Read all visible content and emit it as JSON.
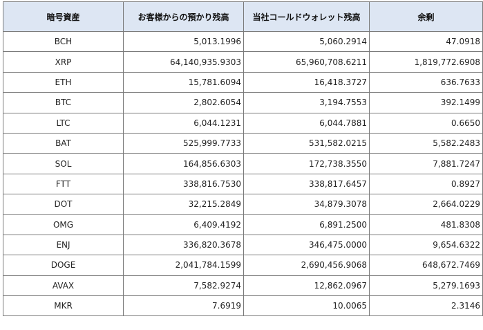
{
  "table": {
    "headers": [
      "暗号資産",
      "お客様からの預かり残高",
      "当社コールドウォレット残高",
      "余剰"
    ],
    "rows": [
      {
        "asset": "BCH",
        "deposit": "5,013.1996",
        "cold": "5,060.2914",
        "surplus": "47.0918"
      },
      {
        "asset": "XRP",
        "deposit": "64,140,935.9303",
        "cold": "65,960,708.6211",
        "surplus": "1,819,772.6908"
      },
      {
        "asset": "ETH",
        "deposit": "15,781.6094",
        "cold": "16,418.3727",
        "surplus": "636.7633"
      },
      {
        "asset": "BTC",
        "deposit": "2,802.6054",
        "cold": "3,194.7553",
        "surplus": "392.1499"
      },
      {
        "asset": "LTC",
        "deposit": "6,044.1231",
        "cold": "6,044.7881",
        "surplus": "0.6650"
      },
      {
        "asset": "BAT",
        "deposit": "525,999.7733",
        "cold": "531,582.0215",
        "surplus": "5,582.2483"
      },
      {
        "asset": "SOL",
        "deposit": "164,856.6303",
        "cold": "172,738.3550",
        "surplus": "7,881.7247"
      },
      {
        "asset": "FTT",
        "deposit": "338,816.7530",
        "cold": "338,817.6457",
        "surplus": "0.8927"
      },
      {
        "asset": "DOT",
        "deposit": "32,215.2849",
        "cold": "34,879.3078",
        "surplus": "2,664.0229"
      },
      {
        "asset": "OMG",
        "deposit": "6,409.4192",
        "cold": "6,891.2500",
        "surplus": "481.8308"
      },
      {
        "asset": "ENJ",
        "deposit": "336,820.3678",
        "cold": "346,475.0000",
        "surplus": "9,654.6322"
      },
      {
        "asset": "DOGE",
        "deposit": "2,041,784.1599",
        "cold": "2,690,456.9068",
        "surplus": "648,672.7469"
      },
      {
        "asset": "AVAX",
        "deposit": "7,582.9274",
        "cold": "12,862.0967",
        "surplus": "5,279.1693"
      },
      {
        "asset": "MKR",
        "deposit": "7.6919",
        "cold": "10.0065",
        "surplus": "2.3146"
      }
    ]
  }
}
